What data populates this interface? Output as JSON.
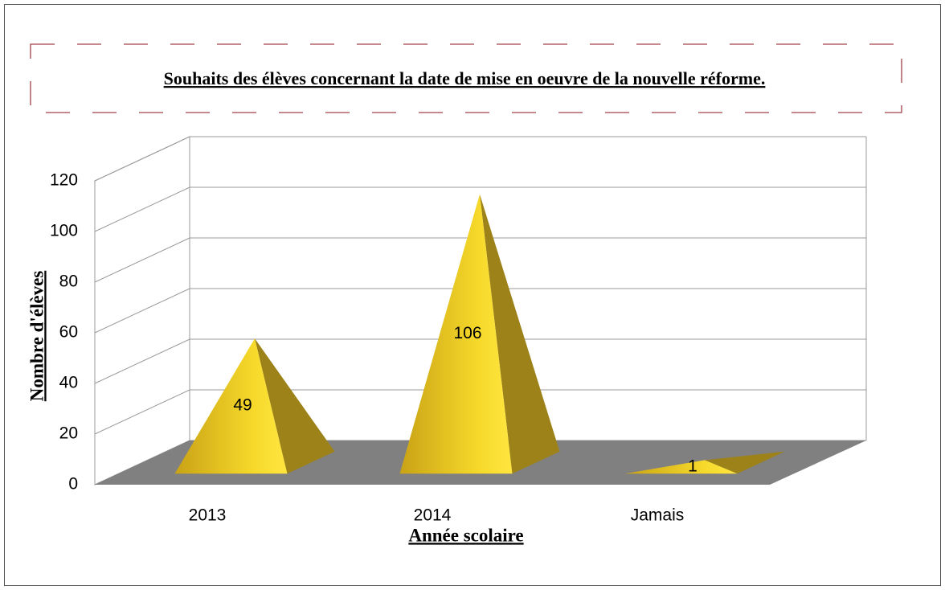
{
  "chart_data": {
    "type": "pyramid",
    "title": "Souhaits des élèves concernant la date de mise en oeuvre de la nouvelle réforme.",
    "x_label": "Année scolaire",
    "y_label": "Nombre d'élèves",
    "categories": [
      "2013",
      "2014",
      "Jamais"
    ],
    "values": [
      49,
      106,
      1
    ],
    "color": "#e8c21c",
    "ylim": [
      0,
      120
    ],
    "yticks": [
      0,
      20,
      40,
      60,
      80,
      100,
      120
    ],
    "grid": true
  }
}
